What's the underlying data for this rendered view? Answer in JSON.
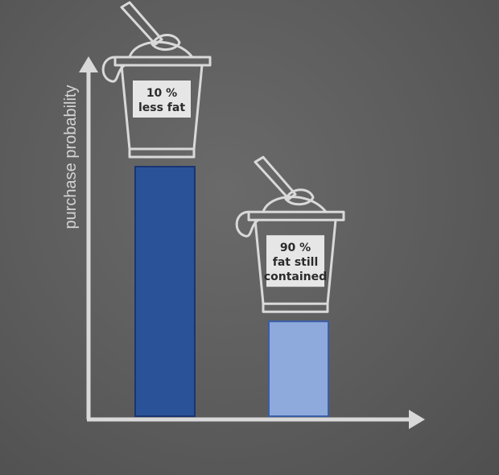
{
  "chart_data": {
    "type": "bar",
    "title": "",
    "xlabel": "",
    "ylabel": "purchase probability",
    "categories": [
      "10 %\nless fat",
      "90 %\nfat still\ncontained"
    ],
    "values": [
      1.0,
      0.38
    ],
    "ylim": [
      0,
      1
    ],
    "grid": false,
    "bar_colors": [
      "#2a5298",
      "#8eaadd"
    ],
    "bar_edge_colors": [
      "#1a3570",
      "#3a5ea8"
    ]
  },
  "axis_color": "#d9d9d9",
  "cups": [
    {
      "icon": "yogurt-cup-icon",
      "lines": [
        "10 %",
        "less fat"
      ]
    },
    {
      "icon": "yogurt-cup-icon",
      "lines": [
        "90 %",
        "fat still",
        "contained"
      ]
    }
  ]
}
